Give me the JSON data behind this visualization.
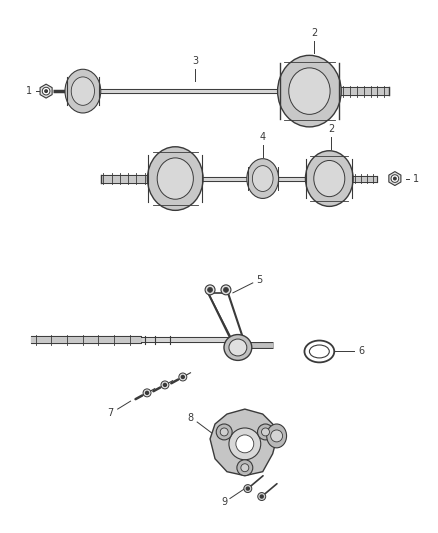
{
  "background_color": "#ffffff",
  "figure_width": 4.38,
  "figure_height": 5.33,
  "dpi": 100,
  "line_color": "#3a3a3a",
  "callout_color": "#3a3a3a",
  "gray_fill": "#d0d0d0",
  "light_gray": "#e8e8e8"
}
